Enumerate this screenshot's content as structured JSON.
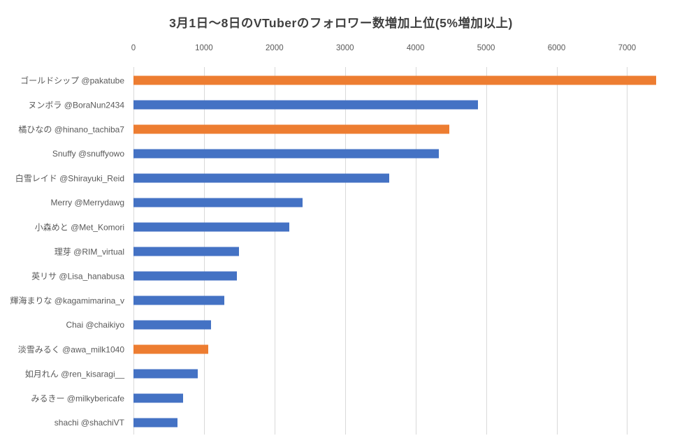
{
  "chart_data": {
    "type": "bar",
    "orientation": "horizontal",
    "title": "3月1日〜8日のVTuberのフォロワー数増加上位(5%増加以上)",
    "xlabel": "",
    "ylabel": "",
    "grid": true,
    "legend": false,
    "x_ticks": [
      0,
      1000,
      2000,
      3000,
      4000,
      5000,
      6000,
      7000
    ],
    "xlim": [
      0,
      7620
    ],
    "categories": [
      "ゴールドシップ @pakatube",
      "ヌンボラ @BoraNun2434",
      "橘ひなの @hinano_tachiba7",
      "Snuffy @snuffyowo",
      "白雪レイド @Shirayuki_Reid",
      "Merry @Merrydawg",
      "小森めと @Met_Komori",
      "理芽 @RIM_virtual",
      "英リサ @Lisa_hanabusa",
      "輝海まりな @kagamimarina_v",
      "Chai @chaikiyo",
      "淡雪みるく @awa_milk1040",
      "如月れん @ren_kisaragi__",
      "みるきー @milkybericafe",
      "shachi @shachiVT"
    ],
    "values": [
      7410,
      4890,
      4480,
      4330,
      3630,
      2400,
      2210,
      1500,
      1470,
      1290,
      1100,
      1060,
      910,
      700,
      620
    ],
    "bar_colors": [
      "#ED7D31",
      "#4472C4",
      "#ED7D31",
      "#4472C4",
      "#4472C4",
      "#4472C4",
      "#4472C4",
      "#4472C4",
      "#4472C4",
      "#4472C4",
      "#4472C4",
      "#ED7D31",
      "#4472C4",
      "#4472C4",
      "#4472C4"
    ],
    "colors": {
      "highlight": "#ED7D31",
      "default": "#4472C4",
      "gridline": "#D9D9D9",
      "title_text": "#404040",
      "axis_text": "#595959",
      "background": "#FFFFFF"
    }
  }
}
